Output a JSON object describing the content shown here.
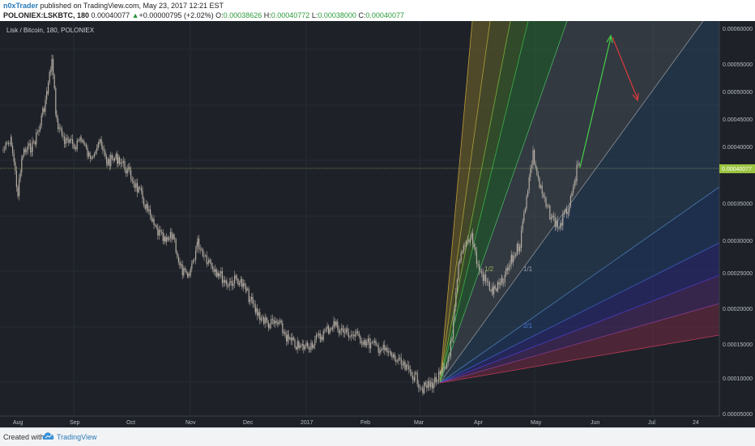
{
  "header": {
    "author": "n0xTrader",
    "published_text": " published on TradingView.com, May 23, 2017 12:21 EST",
    "symbol": "POLONIEX:LSKBTC, 180",
    "price": "0.00040077",
    "change_arrow": "▲",
    "change": "+0.00000795 (+2.02%)",
    "open_label": "O:",
    "open": "0.00038626",
    "high_label": "H:",
    "high": "0.00040772",
    "low_label": "L:",
    "low": "0.00038000",
    "close_label": "C:",
    "close": "0.00040077"
  },
  "chart": {
    "legend": "Lisk / Bitcoin, 180, POLONIEX",
    "price_axis": [
      "0.00060000",
      "0.00055000",
      "0.00050000",
      "0.00045000",
      "0.00040000",
      "0.00035000",
      "0.00030000",
      "0.00025000",
      "0.00020000",
      "0.00015000",
      "0.00010000",
      "0.00005000"
    ],
    "current_price_tag": "0.00040077",
    "time_axis": [
      "Aug",
      "Sep",
      "Oct",
      "Nov",
      "Dec",
      "2017",
      "Feb",
      "Mar",
      "Apr",
      "May",
      "Jun",
      "Jul",
      "24"
    ],
    "fan_labels": [
      "1/2",
      "1/1",
      "2/1"
    ],
    "colors": {
      "background": "#1e2228",
      "candle": "#b4aca3",
      "price_line": "#b5d56a",
      "up_arrow": "#44d044",
      "down_arrow": "#e03a3a"
    }
  },
  "footer": {
    "created_with": "Created with",
    "brand": "TradingView"
  }
}
